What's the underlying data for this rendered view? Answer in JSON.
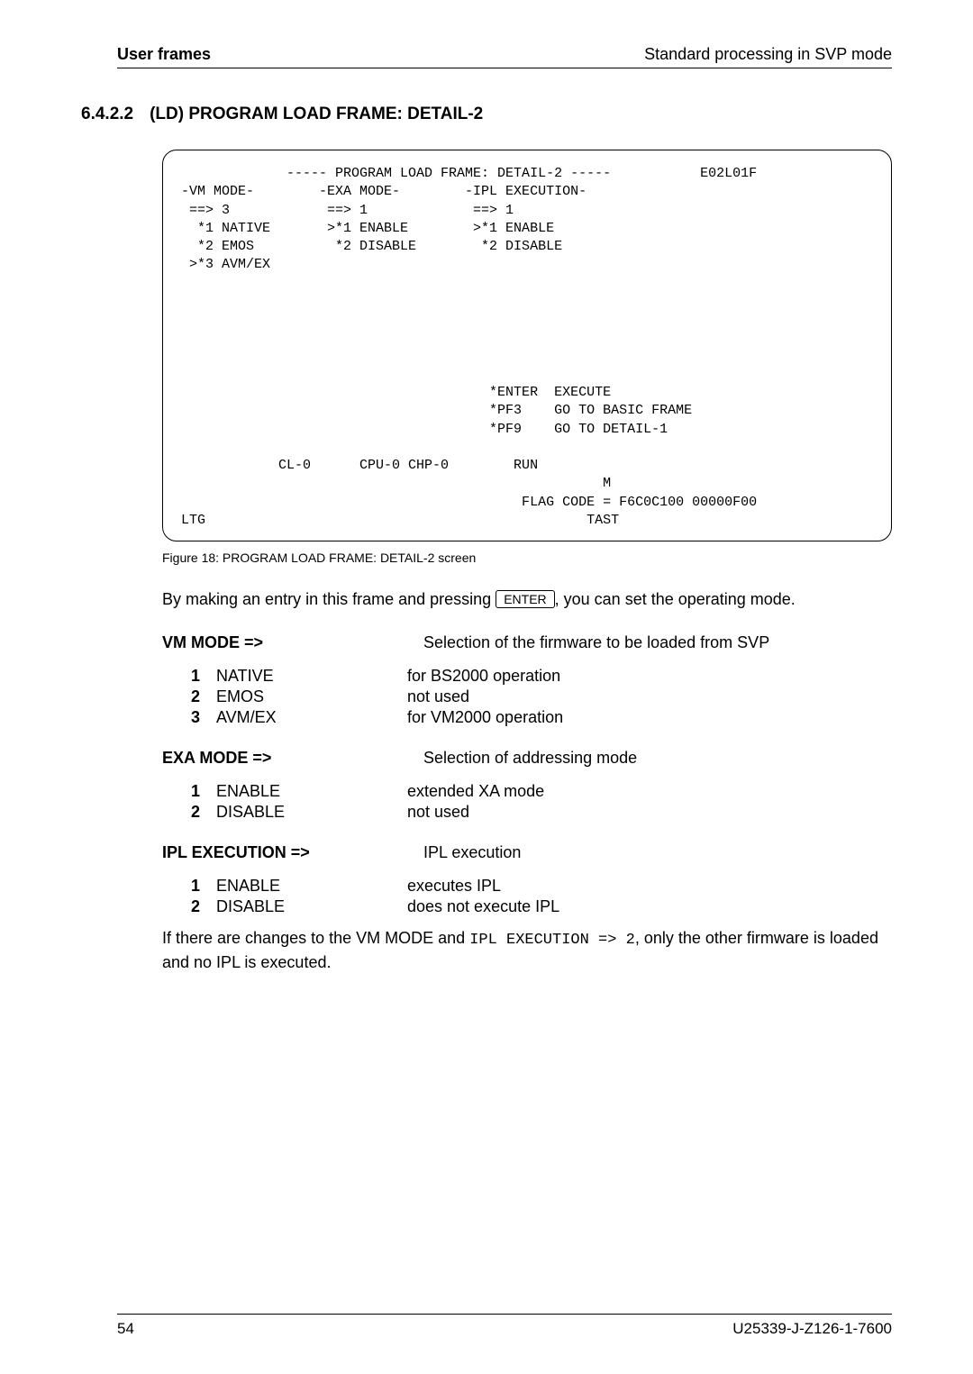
{
  "header": {
    "left": "User frames",
    "right": "Standard processing in SVP mode"
  },
  "section": {
    "number": "6.4.2.2",
    "title": "(LD) PROGRAM LOAD FRAME: DETAIL-2"
  },
  "terminal": {
    "title_line": "             ----- PROGRAM LOAD FRAME: DETAIL-2 -----           E02L01F",
    "body": "-VM MODE-        -EXA MODE-        -IPL EXECUTION-\n ==> 3            ==> 1             ==> 1\n  *1 NATIVE       >*1 ENABLE        >*1 ENABLE\n  *2 EMOS          *2 DISABLE        *2 DISABLE\n >*3 AVM/EX\n\n\n\n\n\n\n                                      *ENTER  EXECUTE\n                                      *PF3    GO TO BASIC FRAME\n                                      *PF9    GO TO DETAIL-1\n\n            CL-0      CPU-0 CHP-0        RUN\n                                                    M\n                                          FLAG CODE = F6C0C100 00000F00\nLTG                                               TAST"
  },
  "figure_caption": "Figure 18: PROGRAM LOAD FRAME: DETAIL-2 screen",
  "intro_sentence_pre": "By making an entry in this frame and pressing ",
  "intro_sentence_key": "ENTER",
  "intro_sentence_post": ", you can set the operating mode.",
  "groups": [
    {
      "heading": "VM MODE  =>",
      "heading_desc": "Selection of the firmware to be loaded from SVP",
      "items": [
        {
          "n": "1",
          "label": "NATIVE",
          "desc": "for BS2000 operation"
        },
        {
          "n": "2",
          "label": "EMOS",
          "desc": "not used"
        },
        {
          "n": "3",
          "label": "AVM/EX",
          "desc": "for VM2000 operation"
        }
      ]
    },
    {
      "heading": "EXA MODE =>",
      "heading_desc": "Selection of addressing mode",
      "items": [
        {
          "n": "1",
          "label": "ENABLE",
          "desc": "extended XA mode"
        },
        {
          "n": "2",
          "label": "DISABLE",
          "desc": "not used"
        }
      ]
    },
    {
      "heading": "IPL EXECUTION  =>",
      "heading_desc": "IPL execution",
      "items": [
        {
          "n": "1",
          "label": "ENABLE",
          "desc": "executes IPL"
        },
        {
          "n": "2",
          "label": "DISABLE",
          "desc": "does not execute IPL"
        }
      ]
    }
  ],
  "closing_pre": "If there are changes to the VM MODE and ",
  "closing_code": "IPL EXECUTION => 2",
  "closing_post": ", only the other firmware is loaded and no IPL is executed.",
  "footer": {
    "page": "54",
    "doc": "U25339-J-Z126-1-7600"
  }
}
